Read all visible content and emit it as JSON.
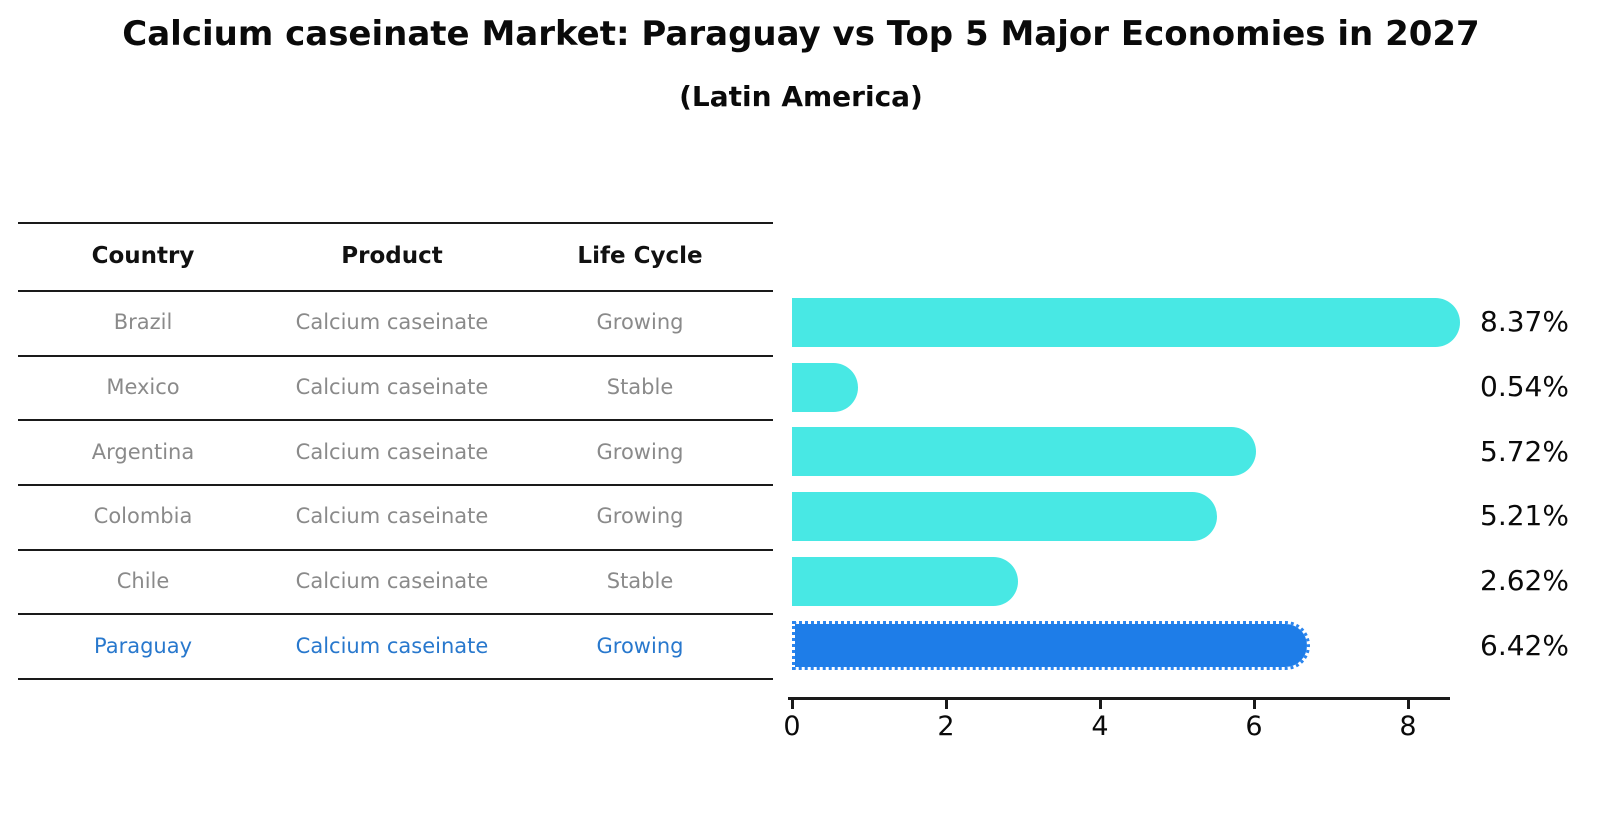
{
  "title": "Calcium caseinate Market: Paraguay vs Top 5 Major Economies in 2027",
  "subtitle": "(Latin America)",
  "table": {
    "headers": [
      "Country",
      "Product",
      "Life Cycle"
    ],
    "rows": [
      {
        "country": "Brazil",
        "product": "Calcium caseinate",
        "life_cycle": "Growing",
        "highlight": false
      },
      {
        "country": "Mexico",
        "product": "Calcium caseinate",
        "life_cycle": "Stable",
        "highlight": false
      },
      {
        "country": "Argentina",
        "product": "Calcium caseinate",
        "life_cycle": "Growing",
        "highlight": false
      },
      {
        "country": "Colombia",
        "product": "Calcium caseinate",
        "life_cycle": "Growing",
        "highlight": false
      },
      {
        "country": "Chile",
        "product": "Calcium caseinate",
        "life_cycle": "Stable",
        "highlight": false
      },
      {
        "country": "Paraguay",
        "product": "Calcium caseinate",
        "life_cycle": "Growing",
        "highlight": true
      }
    ]
  },
  "chart_data": {
    "type": "bar",
    "orientation": "horizontal",
    "title": "Calcium caseinate Market: Paraguay vs Top 5 Major Economies in 2027",
    "subtitle": "(Latin America)",
    "categories": [
      "Brazil",
      "Mexico",
      "Argentina",
      "Colombia",
      "Chile",
      "Paraguay"
    ],
    "values": [
      8.37,
      0.54,
      5.72,
      5.21,
      2.62,
      6.42
    ],
    "value_labels": [
      "8.37%",
      "0.54%",
      "5.72%",
      "5.21%",
      "2.62%",
      "6.42%"
    ],
    "unit": "%",
    "xticks": [
      "0",
      "2",
      "4",
      "6",
      "8"
    ],
    "xtick_values": [
      0,
      2,
      4,
      6,
      8
    ],
    "xlim": [
      0,
      8.6
    ],
    "grid": false,
    "legend": "none",
    "highlight_index": 5,
    "colors": {
      "bar": "#48E8E4",
      "highlight_bar": "#1E7DE8",
      "highlight_text": "#2878CD",
      "row_text": "#8A8A8A",
      "header_text": "#111111",
      "axis": "#1A1A1A"
    }
  }
}
